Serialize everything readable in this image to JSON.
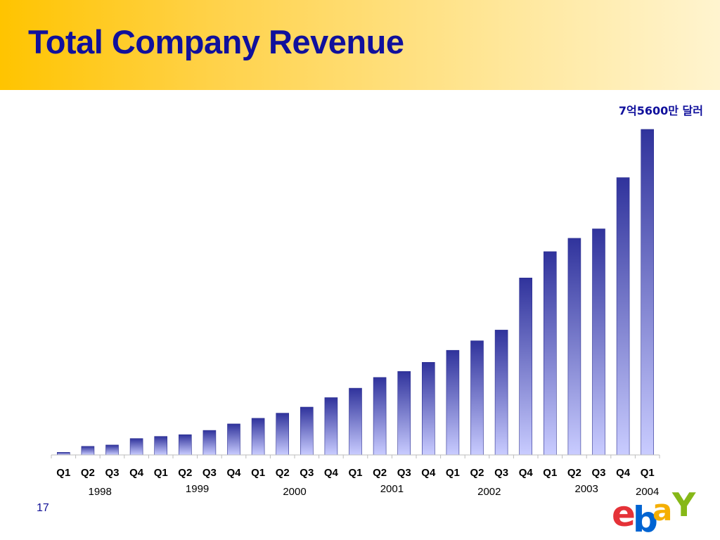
{
  "slide": {
    "title": "Total Company Revenue",
    "page_number": "17",
    "logo_text": "ebay"
  },
  "colors": {
    "title": "#10109c",
    "bar_top": "#30339c",
    "bar_bottom": "#c9ccff",
    "text": "#000000"
  },
  "chart_data": {
    "type": "bar",
    "title": "",
    "annotation": "7억5600만 달러",
    "categories": [
      "Q1",
      "Q2",
      "Q3",
      "Q4",
      "Q1",
      "Q2",
      "Q3",
      "Q4",
      "Q1",
      "Q2",
      "Q3",
      "Q4",
      "Q1",
      "Q2",
      "Q3",
      "Q4",
      "Q1",
      "Q2",
      "Q3",
      "Q4",
      "Q1",
      "Q2",
      "Q3",
      "Q4",
      "Q1"
    ],
    "years": [
      {
        "label": "1998",
        "start": 0,
        "end": 3
      },
      {
        "label": "1999",
        "start": 4,
        "end": 7
      },
      {
        "label": "2000",
        "start": 8,
        "end": 11
      },
      {
        "label": "2001",
        "start": 12,
        "end": 15
      },
      {
        "label": "2002",
        "start": 16,
        "end": 19
      },
      {
        "label": "2003",
        "start": 20,
        "end": 23
      },
      {
        "label": "2004",
        "start": 24,
        "end": 24
      }
    ],
    "values": [
      6,
      20,
      23,
      38,
      43,
      47,
      57,
      72,
      85,
      97,
      111,
      133,
      155,
      180,
      194,
      215,
      243,
      265,
      290,
      411,
      472,
      503,
      525,
      644,
      756
    ],
    "unit": "million USD",
    "ylim": [
      0,
      756
    ],
    "grid": false,
    "legend": "none"
  }
}
